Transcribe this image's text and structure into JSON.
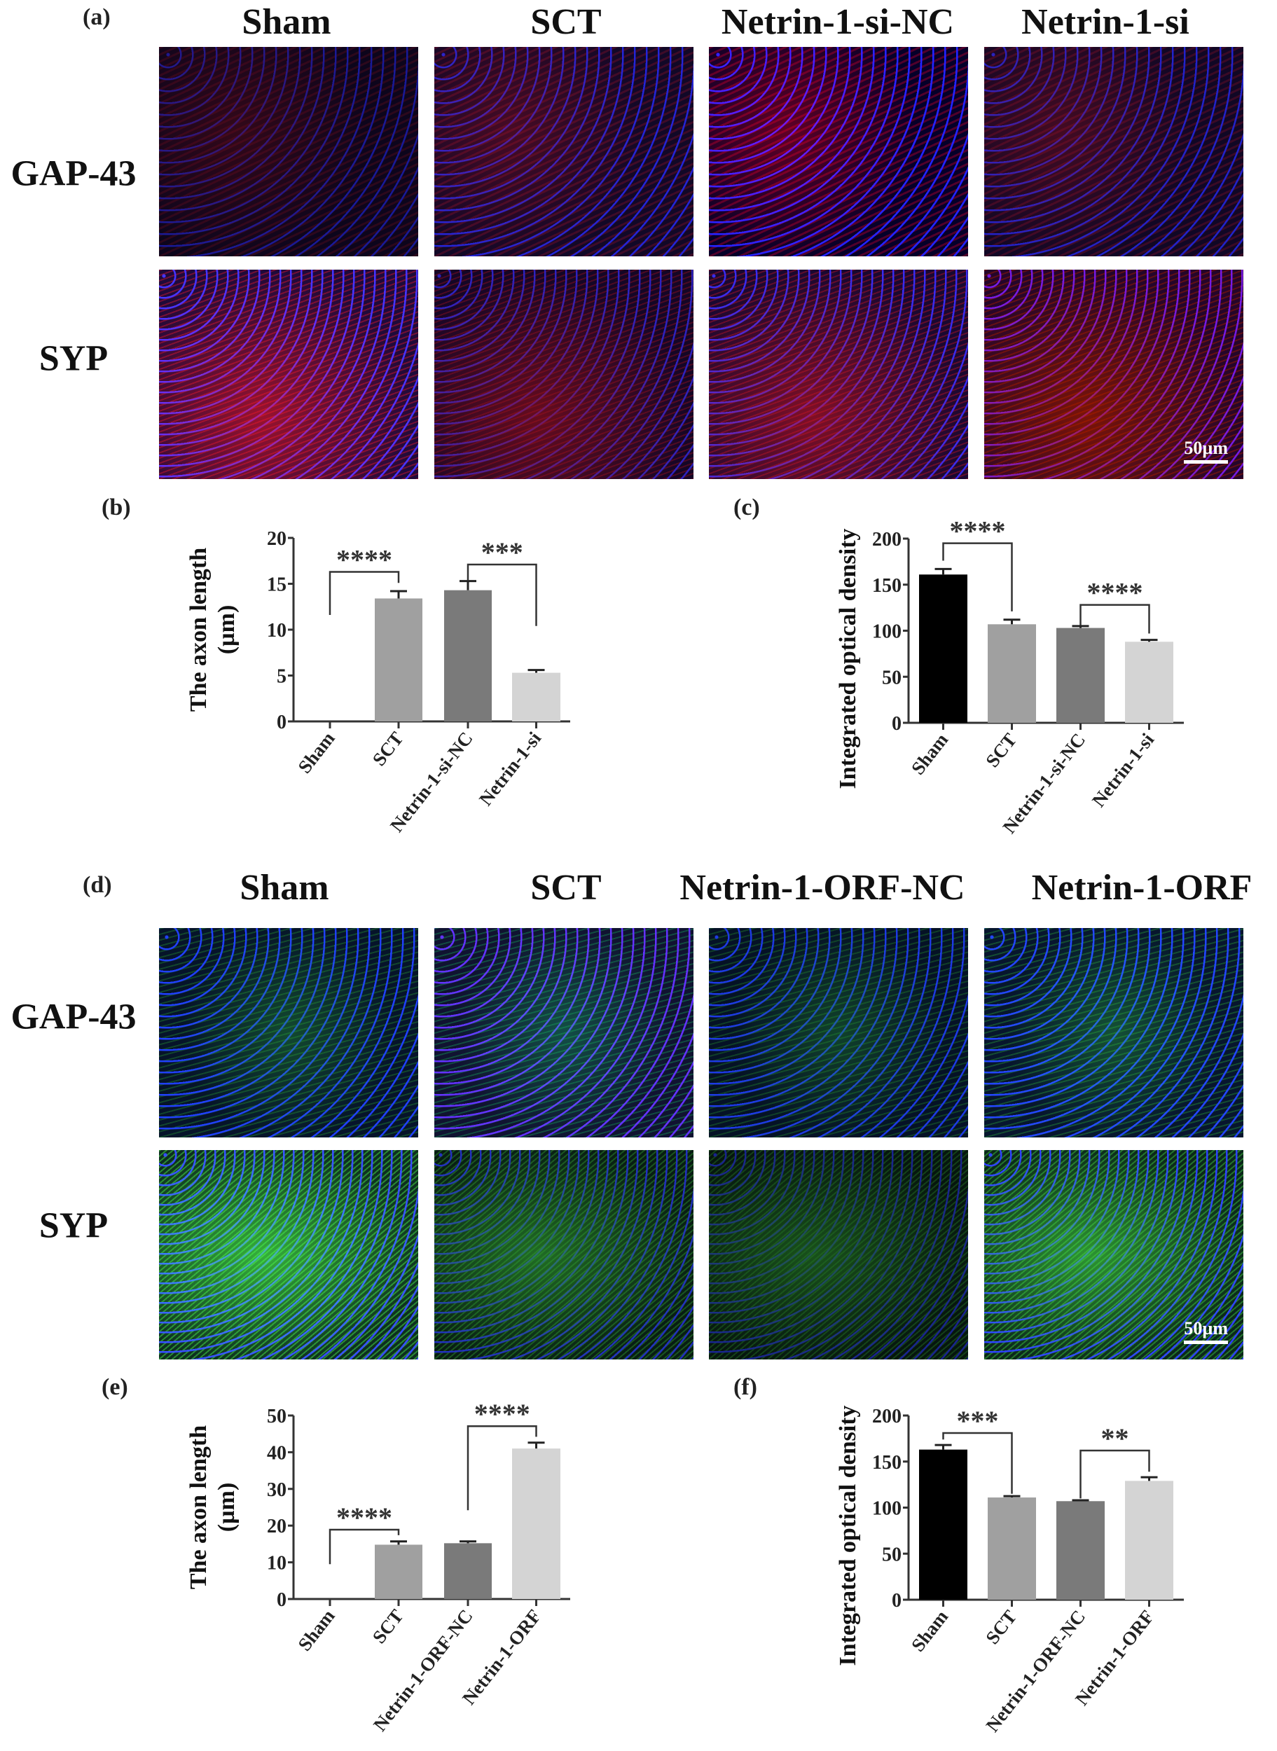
{
  "panels": {
    "a": {
      "label": "(a)",
      "columns": [
        "Sham",
        "SCT",
        "Netrin-1-si-NC",
        "Netrin-1-si"
      ],
      "rows": [
        "GAP-43",
        "SYP"
      ],
      "stain_color": "#d01030",
      "scale_bar": "50µm"
    },
    "d": {
      "label": "(d)",
      "columns": [
        "Sham",
        "SCT",
        "Netrin-1-ORF-NC",
        "Netrin-1-ORF"
      ],
      "rows": [
        "GAP-43",
        "SYP"
      ],
      "stain_color": "#30c040",
      "scale_bar": "50µm"
    }
  },
  "chart_data": [
    {
      "panel": "(b)",
      "type": "bar",
      "categories": [
        "Sham",
        "SCT",
        "Netrin-1-si-NC",
        "Netrin-1-si"
      ],
      "values": [
        0,
        13.4,
        14.3,
        5.3
      ],
      "errors": [
        0,
        0.8,
        1.0,
        0.3
      ],
      "colors": [
        "#000000",
        "#a0a0a0",
        "#7a7a7a",
        "#d4d4d4"
      ],
      "ylabel": [
        "The axon length",
        "(µm)"
      ],
      "ylim": [
        0,
        20
      ],
      "yticks": [
        0,
        5,
        10,
        15,
        20
      ],
      "grid": false,
      "significance": [
        {
          "from": 0,
          "to": 1,
          "label": "****",
          "y": 16.3,
          "left_end": 11.6,
          "right_end": 15.1
        },
        {
          "from": 2,
          "to": 3,
          "label": "***",
          "y": 17.1,
          "left_end": 15.4,
          "right_end": 10.4
        }
      ]
    },
    {
      "panel": "(c)",
      "type": "bar",
      "categories": [
        "Sham",
        "SCT",
        "Netrin-1-si-NC",
        "Netrin-1-si"
      ],
      "values": [
        161,
        107,
        103,
        88
      ],
      "errors": [
        6,
        5,
        2,
        2
      ],
      "colors": [
        "#000000",
        "#a0a0a0",
        "#7a7a7a",
        "#d4d4d4"
      ],
      "ylabel": [
        "Integrated optical density"
      ],
      "ylim": [
        0,
        200
      ],
      "yticks": [
        0,
        50,
        100,
        150,
        200
      ],
      "grid": false,
      "significance": [
        {
          "from": 0,
          "to": 1,
          "label": "****",
          "y": 195,
          "left_end": 176,
          "right_end": 121
        },
        {
          "from": 2,
          "to": 3,
          "label": "****",
          "y": 128,
          "left_end": 106,
          "right_end": 97
        }
      ]
    },
    {
      "panel": "(e)",
      "type": "bar",
      "categories": [
        "Sham",
        "SCT",
        "Netrin-1-ORF-NC",
        "Netrin-1-ORF"
      ],
      "values": [
        0,
        14.8,
        15.2,
        41
      ],
      "errors": [
        0,
        0.9,
        0.5,
        1.6
      ],
      "colors": [
        "#000000",
        "#a0a0a0",
        "#7a7a7a",
        "#d4d4d4"
      ],
      "ylabel": [
        "The axon length",
        "(µm)"
      ],
      "ylim": [
        0,
        50
      ],
      "yticks": [
        0,
        10,
        20,
        30,
        40,
        50
      ],
      "grid": false,
      "significance": [
        {
          "from": 0,
          "to": 1,
          "label": "****",
          "y": 18.9,
          "left_end": 9.5,
          "right_end": 17.4
        },
        {
          "from": 2,
          "to": 3,
          "label": "****",
          "y": 47.1,
          "left_end": 24.2,
          "right_end": 44.2
        }
      ]
    },
    {
      "panel": "(f)",
      "type": "bar",
      "categories": [
        "Sham",
        "SCT",
        "Netrin-1-ORF-NC",
        "Netrin-1-ORF"
      ],
      "values": [
        163,
        111,
        107,
        129
      ],
      "errors": [
        5,
        1.5,
        1,
        4
      ],
      "colors": [
        "#000000",
        "#a0a0a0",
        "#7a7a7a",
        "#d4d4d4"
      ],
      "ylabel": [
        "Integrated optical density"
      ],
      "ylim": [
        0,
        200
      ],
      "yticks": [
        0,
        50,
        100,
        150,
        200
      ],
      "grid": false,
      "significance": [
        {
          "from": 0,
          "to": 1,
          "label": "***",
          "y": 181,
          "left_end": 174,
          "right_end": 115
        },
        {
          "from": 2,
          "to": 3,
          "label": "**",
          "y": 162,
          "left_end": 110,
          "right_end": 139
        }
      ]
    }
  ]
}
